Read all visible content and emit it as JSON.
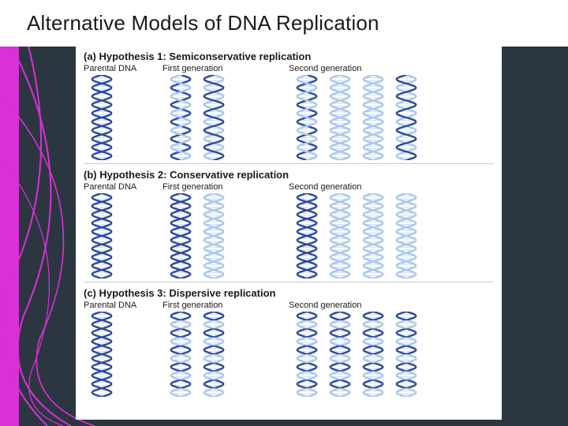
{
  "slide": {
    "title": "Alternative Models of DNA Replication",
    "background_color": "#2c3640",
    "accent_color": "#d831d8",
    "title_bg": "#ffffff",
    "title_color": "#1a1a1a",
    "title_fontsize": 26
  },
  "figure": {
    "background": "#ffffff",
    "panel_title_fontsize": 13,
    "col_label_fontsize": 11,
    "col_labels": [
      "Parental DNA",
      "First generation",
      "Second generation"
    ],
    "helix": {
      "width": 34,
      "height": 108,
      "turns": 5,
      "strand_width": 2.4,
      "color_old": "#2e4a9e",
      "color_new": "#a9c7ef"
    },
    "panels": [
      {
        "key": "a",
        "title": "(a) Hypothesis 1: Semiconservative replication",
        "parental": [
          {
            "left": "old",
            "right": "old"
          }
        ],
        "gen1": [
          {
            "left": "old",
            "right": "new"
          },
          {
            "left": "new",
            "right": "old"
          }
        ],
        "gen2": [
          {
            "left": "old",
            "right": "new"
          },
          {
            "left": "new",
            "right": "new"
          },
          {
            "left": "new",
            "right": "new"
          },
          {
            "left": "new",
            "right": "old"
          }
        ]
      },
      {
        "key": "b",
        "title": "(b) Hypothesis 2: Conservative replication",
        "parental": [
          {
            "left": "old",
            "right": "old"
          }
        ],
        "gen1": [
          {
            "left": "old",
            "right": "old"
          },
          {
            "left": "new",
            "right": "new"
          }
        ],
        "gen2": [
          {
            "left": "old",
            "right": "old"
          },
          {
            "left": "new",
            "right": "new"
          },
          {
            "left": "new",
            "right": "new"
          },
          {
            "left": "new",
            "right": "new"
          }
        ]
      },
      {
        "key": "c",
        "title": "(c) Hypothesis 3: Dispersive replication",
        "parental": [
          {
            "left": "old",
            "right": "old"
          }
        ],
        "gen1": [
          {
            "left": "mix",
            "right": "mix"
          },
          {
            "left": "mix",
            "right": "mix"
          }
        ],
        "gen2": [
          {
            "left": "mix",
            "right": "mix"
          },
          {
            "left": "mix",
            "right": "mix"
          },
          {
            "left": "mix",
            "right": "mix"
          },
          {
            "left": "mix",
            "right": "mix"
          }
        ]
      }
    ]
  }
}
